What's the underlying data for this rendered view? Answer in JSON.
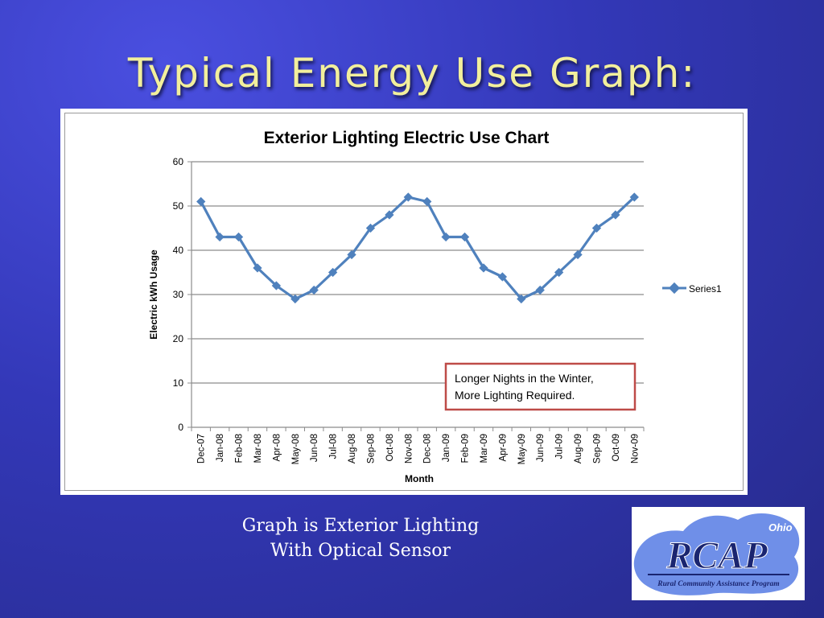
{
  "slide": {
    "title": "Typical Energy Use Graph:",
    "caption_line1": "Graph is Exterior Lighting",
    "caption_line2": "With Optical Sensor"
  },
  "logo": {
    "wordmark": "RCAP",
    "state": "Ohio",
    "tagline": "Rural Community Assistance Program"
  },
  "colors": {
    "background": "#3338b8",
    "title": "#f2ef9c",
    "series": "#4f81bd",
    "annotation_border": "#be4b48",
    "logo_blue": "#6f8fe8",
    "logo_navy": "#1a2570"
  },
  "chart_data": {
    "type": "line",
    "title": "Exterior Lighting Electric Use Chart",
    "xlabel": "Month",
    "ylabel": "Electric kWh Usage",
    "ylim": [
      0,
      60
    ],
    "yticks": [
      0,
      10,
      20,
      30,
      40,
      50,
      60
    ],
    "grid": true,
    "legend_position": "right",
    "categories": [
      "Dec-07",
      "Jan-08",
      "Feb-08",
      "Mar-08",
      "Apr-08",
      "May-08",
      "Jun-08",
      "Jul-08",
      "Aug-08",
      "Sep-08",
      "Oct-08",
      "Nov-08",
      "Dec-08",
      "Jan-09",
      "Feb-09",
      "Mar-09",
      "Apr-09",
      "May-09",
      "Jun-09",
      "Jul-09",
      "Aug-09",
      "Sep-09",
      "Oct-09",
      "Nov-09"
    ],
    "series": [
      {
        "name": "Series1",
        "values": [
          51,
          43,
          43,
          36,
          32,
          29,
          31,
          35,
          39,
          45,
          48,
          52,
          51,
          43,
          43,
          36,
          34,
          29,
          31,
          35,
          39,
          45,
          48,
          52
        ]
      }
    ],
    "annotation": {
      "line1": "Longer Nights in the Winter,",
      "line2": "More Lighting Required."
    }
  }
}
